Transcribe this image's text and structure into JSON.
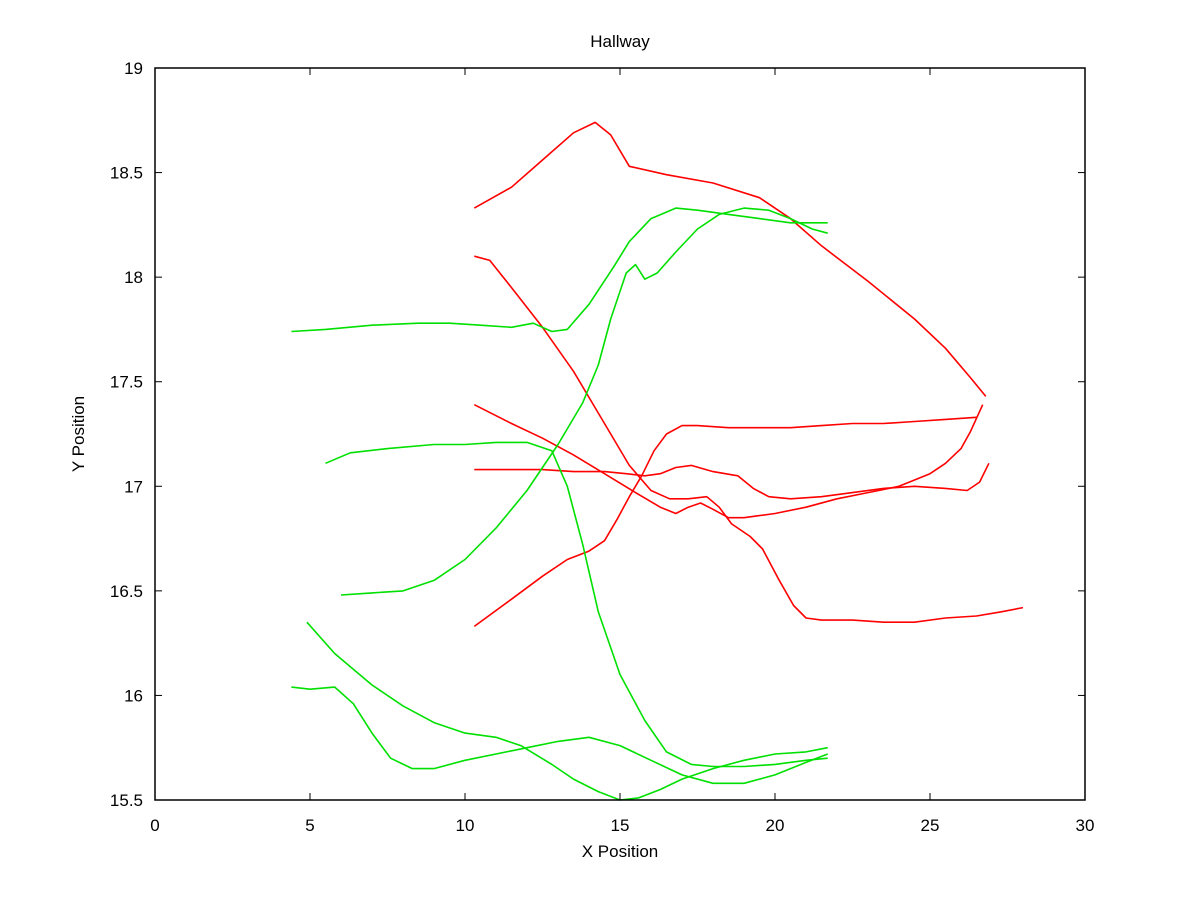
{
  "chart_data": {
    "type": "line",
    "title": "Hallway",
    "xlabel": "X Position",
    "ylabel": "Y Position",
    "xlim": [
      0,
      30
    ],
    "ylim": [
      15.5,
      19
    ],
    "xticks": [
      0,
      5,
      10,
      15,
      20,
      25,
      30
    ],
    "yticks": [
      15.5,
      16,
      16.5,
      17,
      17.5,
      18,
      18.5,
      19
    ],
    "xtick_labels": [
      "0",
      "5",
      "10",
      "15",
      "20",
      "25",
      "30"
    ],
    "ytick_labels": [
      "15.5",
      "16",
      "16.5",
      "17",
      "17.5",
      "18",
      "18.5",
      "19"
    ],
    "grid": false,
    "colors": {
      "red": "#ff0000",
      "green": "#00e000"
    },
    "series": [
      {
        "color": "red",
        "x": [
          10.3,
          11.5,
          12.5,
          13.5,
          14.2,
          14.7,
          15.3,
          16.5,
          18,
          19.5,
          20.5,
          21.5,
          23,
          24.5,
          25.5,
          26.3,
          26.8
        ],
        "y": [
          18.33,
          18.43,
          18.56,
          18.69,
          18.74,
          18.68,
          18.53,
          18.49,
          18.45,
          18.38,
          18.28,
          18.15,
          17.98,
          17.8,
          17.66,
          17.52,
          17.43
        ]
      },
      {
        "color": "red",
        "x": [
          10.3,
          10.8,
          11.5,
          12.5,
          13.5,
          14.5,
          15.3,
          16,
          16.6,
          17.2,
          17.8,
          18.2,
          18.6,
          19.2,
          19.6,
          20.1,
          20.6,
          21,
          21.5,
          22.5,
          23.5,
          24.5,
          25.5,
          26.5,
          27.3,
          28
        ],
        "y": [
          18.1,
          18.08,
          17.95,
          17.76,
          17.55,
          17.3,
          17.1,
          16.98,
          16.94,
          16.94,
          16.95,
          16.9,
          16.82,
          16.76,
          16.7,
          16.56,
          16.43,
          16.37,
          16.36,
          16.36,
          16.35,
          16.35,
          16.37,
          16.38,
          16.4,
          16.42
        ]
      },
      {
        "color": "red",
        "x": [
          10.3,
          11.5,
          12.5,
          13.5,
          14.5,
          15.5,
          16.3,
          16.8,
          17.2,
          17.6,
          18,
          18.5,
          19,
          19.5,
          20,
          21,
          22,
          23,
          24,
          25,
          25.5,
          26,
          26.3,
          26.7
        ],
        "y": [
          17.39,
          17.3,
          17.23,
          17.15,
          17.06,
          16.97,
          16.9,
          16.87,
          16.9,
          16.92,
          16.89,
          16.85,
          16.85,
          16.86,
          16.87,
          16.9,
          16.94,
          16.97,
          17.0,
          17.06,
          17.11,
          17.18,
          17.26,
          17.39
        ]
      },
      {
        "color": "red",
        "x": [
          10.3,
          11.5,
          12.5,
          13.5,
          14.5,
          15.2,
          15.8,
          16.3,
          16.8,
          17.3,
          18,
          18.8,
          19.3,
          19.8,
          20.5,
          21.5,
          22.5,
          23.5,
          24.5,
          25.5,
          26.2,
          26.6,
          26.9
        ],
        "y": [
          17.08,
          17.08,
          17.08,
          17.07,
          17.07,
          17.06,
          17.05,
          17.06,
          17.09,
          17.1,
          17.07,
          17.05,
          16.99,
          16.95,
          16.94,
          16.95,
          16.97,
          16.99,
          17.0,
          16.99,
          16.98,
          17.02,
          17.11
        ]
      },
      {
        "color": "red",
        "x": [
          10.3,
          11.5,
          12.5,
          13.3,
          14,
          14.5,
          14.9,
          15.3,
          15.7,
          16.1,
          16.5,
          17,
          17.5,
          18.5,
          19.5,
          20.5,
          21.5,
          22.5,
          23.5,
          24.5,
          25.5,
          26.5
        ],
        "y": [
          16.33,
          16.46,
          16.57,
          16.65,
          16.69,
          16.74,
          16.84,
          16.95,
          17.05,
          17.17,
          17.25,
          17.29,
          17.29,
          17.28,
          17.28,
          17.28,
          17.29,
          17.3,
          17.3,
          17.31,
          17.32,
          17.33
        ]
      },
      {
        "color": "green",
        "x": [
          4.4,
          5.5,
          7,
          8.5,
          9.5,
          10.5,
          11.5,
          12.2,
          12.8,
          13.3,
          14,
          14.8,
          15.3,
          16,
          16.8,
          17.5,
          18.5,
          19.5,
          20.5,
          21.7
        ],
        "y": [
          17.74,
          17.75,
          17.77,
          17.78,
          17.78,
          17.77,
          17.76,
          17.78,
          17.74,
          17.75,
          17.87,
          18.05,
          18.17,
          18.28,
          18.33,
          18.32,
          18.3,
          18.28,
          18.26,
          18.26
        ]
      },
      {
        "color": "green",
        "x": [
          6,
          7,
          8,
          9,
          10,
          11,
          12,
          13,
          13.8,
          14.3,
          14.7,
          15.2,
          15.5,
          15.8,
          16.2,
          16.8,
          17.5,
          18.2,
          19,
          19.8,
          20.5,
          21.2,
          21.7
        ],
        "y": [
          16.48,
          16.49,
          16.5,
          16.55,
          16.65,
          16.8,
          16.98,
          17.2,
          17.4,
          17.58,
          17.8,
          18.02,
          18.06,
          17.99,
          18.02,
          18.12,
          18.23,
          18.3,
          18.33,
          18.32,
          18.28,
          18.23,
          18.21
        ]
      },
      {
        "color": "green",
        "x": [
          5.5,
          6.3,
          7.5,
          9,
          10,
          11,
          12,
          12.8,
          13.3,
          13.8,
          14.3,
          15,
          15.8,
          16.5,
          17.3,
          18,
          19,
          20,
          21,
          21.7
        ],
        "y": [
          17.11,
          17.16,
          17.18,
          17.2,
          17.2,
          17.21,
          17.21,
          17.17,
          17.0,
          16.72,
          16.4,
          16.1,
          15.88,
          15.73,
          15.67,
          15.66,
          15.66,
          15.67,
          15.69,
          15.7
        ]
      },
      {
        "color": "green",
        "x": [
          4.4,
          5,
          5.8,
          6.4,
          7,
          7.6,
          8.3,
          9,
          10,
          11,
          12,
          13,
          14,
          15,
          16,
          17,
          18,
          19,
          20,
          21,
          21.7
        ],
        "y": [
          16.04,
          16.03,
          16.04,
          15.96,
          15.82,
          15.7,
          15.65,
          15.65,
          15.69,
          15.72,
          15.75,
          15.78,
          15.8,
          15.76,
          15.69,
          15.62,
          15.58,
          15.58,
          15.62,
          15.68,
          15.72
        ]
      },
      {
        "color": "green",
        "x": [
          4.9,
          5.8,
          7,
          8,
          9,
          10,
          11,
          11.8,
          12.8,
          13.5,
          14.3,
          15,
          15.6,
          16.3,
          17,
          18,
          19,
          20,
          21,
          21.7
        ],
        "y": [
          16.35,
          16.2,
          16.05,
          15.95,
          15.87,
          15.82,
          15.8,
          15.76,
          15.67,
          15.6,
          15.54,
          15.5,
          15.51,
          15.55,
          15.6,
          15.65,
          15.69,
          15.72,
          15.73,
          15.75
        ]
      }
    ]
  }
}
